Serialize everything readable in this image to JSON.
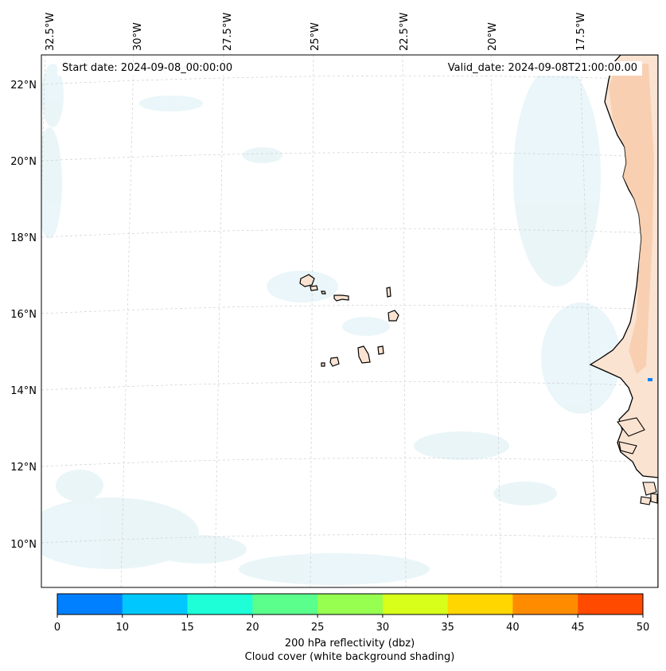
{
  "map": {
    "start_date": "Start date: 2024-09-08_00:00:00",
    "valid_date": "Valid_date: 2024-09-08T21:00:00.00",
    "lon_labels": [
      "32.5°W",
      "30°W",
      "27.5°W",
      "25°W",
      "22.5°W",
      "20°W",
      "17.5°W"
    ],
    "lat_labels": [
      "22°N",
      "20°N",
      "18°N",
      "16°N",
      "14°N",
      "12°N",
      "10°N"
    ],
    "land_color": "#fde8d8",
    "coast_color": "#000000"
  },
  "colorbar": {
    "ticks": [
      "0",
      "10",
      "15",
      "20",
      "25",
      "30",
      "35",
      "40",
      "45",
      "50"
    ],
    "colors": [
      "#0080ff",
      "#00c8ff",
      "#1effd8",
      "#5aff8c",
      "#96ff50",
      "#d8ff1a",
      "#ffd600",
      "#ff8c00",
      "#ff4a00"
    ],
    "label_line1": "200 hPa reflectivity (dbz)",
    "label_line2": "Cloud cover (white background shading)"
  }
}
